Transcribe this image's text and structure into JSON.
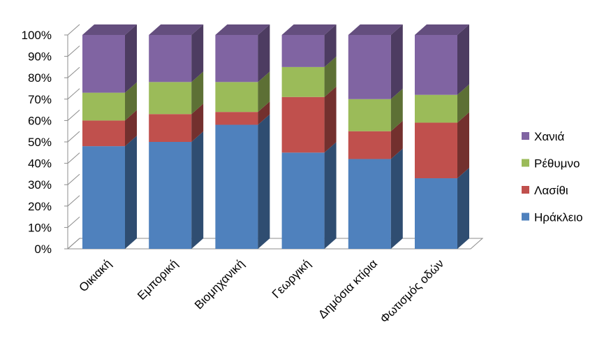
{
  "chart_data": {
    "type": "bar",
    "stacked": true,
    "percent": true,
    "three_d": true,
    "categories": [
      "Οικιακή",
      "Εμπορική",
      "Βιομηχανική",
      "Γεωργική",
      "Δημόσια κτίρια",
      "Φωτισμός οδών"
    ],
    "series": [
      {
        "name": "Ηράκλειο",
        "color": "#4F81BD",
        "values": [
          48,
          50,
          58,
          45,
          42,
          33
        ]
      },
      {
        "name": "Λασίθι",
        "color": "#C0504D",
        "values": [
          12,
          13,
          6,
          26,
          13,
          26
        ]
      },
      {
        "name": "Ρέθυμνο",
        "color": "#9BBB59",
        "values": [
          13,
          15,
          14,
          14,
          15,
          13
        ]
      },
      {
        "name": "Χανιά",
        "color": "#8064A2",
        "values": [
          27,
          22,
          22,
          15,
          30,
          28
        ]
      }
    ],
    "y_ticks": [
      "0%",
      "10%",
      "20%",
      "30%",
      "40%",
      "50%",
      "60%",
      "70%",
      "80%",
      "90%",
      "100%"
    ],
    "ylim": [
      0,
      100
    ],
    "legend_position": "right",
    "legend_order": [
      "Χανιά",
      "Ρέθυμνο",
      "Λασίθι",
      "Ηράκλειο"
    ],
    "grid": false
  }
}
